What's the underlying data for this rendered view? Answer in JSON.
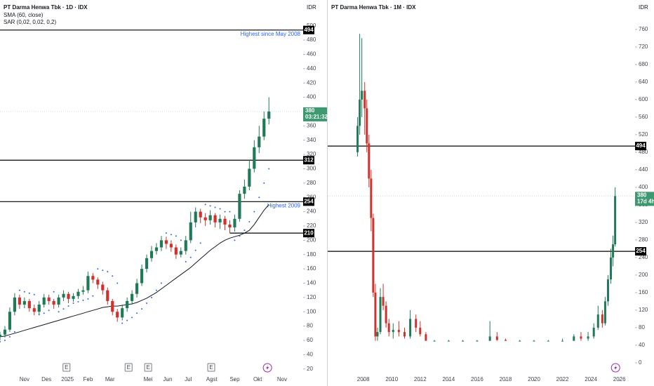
{
  "chart_data": [
    {
      "type": "candlestick",
      "title": "PT Darma Henwa Tbk · 1D · IDX",
      "currency": "IDR",
      "colors": {
        "up": "#1f7a57",
        "down": "#d0312d",
        "sma": "#131722",
        "sar": "#2962ff",
        "last": "#3d9970"
      },
      "open": [
        65,
        68,
        75,
        100,
        120,
        110,
        115,
        105,
        100,
        110,
        120,
        115,
        110,
        120,
        125,
        118,
        122,
        128,
        130,
        150,
        145,
        138,
        130,
        115,
        100,
        92,
        105,
        115,
        125,
        140,
        160,
        175,
        185,
        190,
        200,
        195,
        190,
        180,
        185,
        200,
        225,
        240,
        232,
        228,
        235,
        225,
        230,
        222,
        218,
        230,
        265,
        275,
        300,
        330,
        345,
        370
      ],
      "high": [
        72,
        80,
        106,
        126,
        124,
        120,
        118,
        110,
        115,
        125,
        124,
        118,
        124,
        130,
        128,
        126,
        132,
        136,
        156,
        154,
        148,
        142,
        134,
        118,
        104,
        110,
        120,
        130,
        146,
        166,
        180,
        192,
        196,
        206,
        205,
        200,
        194,
        190,
        206,
        240,
        246,
        244,
        238,
        242,
        238,
        236,
        234,
        228,
        236,
        270,
        285,
        312,
        340,
        360,
        380,
        400
      ],
      "low": [
        60,
        64,
        72,
        95,
        104,
        105,
        100,
        95,
        96,
        106,
        110,
        104,
        106,
        115,
        112,
        114,
        118,
        124,
        126,
        140,
        132,
        124,
        110,
        95,
        86,
        88,
        100,
        110,
        120,
        136,
        155,
        170,
        180,
        185,
        188,
        184,
        174,
        176,
        180,
        196,
        218,
        224,
        220,
        222,
        218,
        216,
        214,
        210,
        212,
        226,
        258,
        270,
        295,
        322,
        340,
        362
      ],
      "close": [
        68,
        75,
        100,
        120,
        110,
        115,
        105,
        100,
        110,
        120,
        115,
        110,
        120,
        125,
        118,
        122,
        128,
        130,
        150,
        145,
        138,
        130,
        115,
        100,
        92,
        105,
        115,
        125,
        140,
        160,
        175,
        185,
        190,
        200,
        195,
        190,
        180,
        185,
        200,
        225,
        240,
        232,
        228,
        235,
        225,
        230,
        222,
        218,
        230,
        265,
        275,
        300,
        330,
        345,
        370,
        380
      ],
      "sma": {
        "name": "SMA (60, close)",
        "values": [
          65,
          66,
          68,
          70,
          72,
          74,
          76,
          78,
          80,
          82,
          84,
          86,
          88,
          90,
          92,
          94,
          96,
          98,
          100,
          102,
          104,
          106,
          107,
          108,
          108,
          109,
          110,
          111,
          113,
          116,
          119,
          123,
          127,
          132,
          137,
          142,
          147,
          152,
          157,
          162,
          168,
          174,
          180,
          186,
          191,
          196,
          200,
          203,
          205,
          207,
          210,
          214,
          222,
          232,
          242,
          250
        ]
      },
      "sar": {
        "name": "SAR (0,02, 0,02, 0,2)",
        "values": [
          58,
          60,
          65,
          72,
          130,
          128,
          126,
          124,
          96,
          98,
          102,
          128,
          100,
          104,
          108,
          112,
          114,
          116,
          118,
          122,
          160,
          158,
          156,
          150,
          140,
          84,
          88,
          92,
          98,
          104,
          112,
          120,
          130,
          140,
          210,
          208,
          206,
          200,
          170,
          176,
          186,
          196,
          250,
          248,
          246,
          244,
          240,
          240,
          200,
          206,
          214,
          226,
          240,
          260,
          280,
          300
        ]
      },
      "xlim": [
        0,
        62
      ],
      "xticks": [
        {
          "value": 5,
          "label": "Nov"
        },
        {
          "value": 9.5,
          "label": "Des"
        },
        {
          "value": 13.8,
          "label": "2025"
        },
        {
          "value": 18,
          "label": "Feb"
        },
        {
          "value": 22.5,
          "label": "Mar"
        },
        {
          "value": 30.3,
          "label": "Mei"
        },
        {
          "value": 34.3,
          "label": "Jun"
        },
        {
          "value": 38.5,
          "label": "Jul"
        },
        {
          "value": 43.3,
          "label": "Agst"
        },
        {
          "value": 48,
          "label": "Sep"
        },
        {
          "value": 52.7,
          "label": "Okt"
        },
        {
          "value": 57.7,
          "label": "Nov"
        }
      ],
      "ylim": [
        6,
        536
      ],
      "yticks": [
        20,
        40,
        60,
        80,
        100,
        120,
        140,
        160,
        180,
        200,
        220,
        240,
        260,
        280,
        300,
        320,
        340,
        360,
        380,
        400,
        420,
        440,
        460,
        480,
        500
      ],
      "levels": [
        {
          "value": 494,
          "annotation": "Highest since May 2008"
        },
        {
          "value": 312
        },
        {
          "value": 254,
          "annotation": "Highest 2009"
        },
        {
          "value": 210,
          "x_start": 47
        }
      ],
      "last_price": 380,
      "countdown": "03:21:32",
      "events": [
        {
          "value": 13.6,
          "label": "E"
        },
        {
          "value": 26.3,
          "label": "E"
        },
        {
          "value": 30.3,
          "label": "E"
        },
        {
          "value": 43.2,
          "label": "E"
        }
      ],
      "dividends": [
        54.7
      ]
    },
    {
      "type": "candlestick",
      "title": "PT Darma Henwa Tbk · 1M · IDX",
      "currency": "IDR",
      "colors": {
        "up": "#1f7a57",
        "down": "#d0312d",
        "last": "#3d9970"
      },
      "x": [
        2007.6,
        2007.75,
        2007.9,
        2008.1,
        2008.25,
        2008.4,
        2008.55,
        2008.7,
        2008.85,
        2009.0,
        2009.2,
        2009.4,
        2009.6,
        2009.8,
        2010.1,
        2010.5,
        2010.9,
        2011.3,
        2011.7,
        2012.0,
        2012.4,
        2013,
        2014,
        2015,
        2016,
        2016.9,
        2017.4,
        2018,
        2019,
        2020,
        2021,
        2022,
        2022.8,
        2023.3,
        2023.8,
        2024.2,
        2024.5,
        2024.8,
        2025.0,
        2025.2,
        2025.4,
        2025.55,
        2025.7
      ],
      "open": [
        480,
        540,
        600,
        620,
        580,
        500,
        420,
        330,
        160,
        60,
        70,
        150,
        130,
        90,
        70,
        75,
        70,
        60,
        100,
        80,
        65,
        50,
        50,
        50,
        50,
        50,
        60,
        52,
        50,
        50,
        50,
        50,
        50,
        60,
        55,
        60,
        80,
        110,
        90,
        140,
        190,
        240,
        270
      ],
      "high": [
        560,
        750,
        740,
        640,
        600,
        520,
        440,
        340,
        180,
        80,
        170,
        180,
        140,
        100,
        90,
        95,
        80,
        120,
        110,
        95,
        70,
        52,
        52,
        52,
        52,
        95,
        70,
        55,
        52,
        52,
        52,
        55,
        65,
        70,
        70,
        90,
        130,
        120,
        150,
        200,
        260,
        290,
        400
      ],
      "low": [
        470,
        520,
        560,
        520,
        480,
        400,
        300,
        150,
        50,
        50,
        65,
        120,
        80,
        60,
        55,
        60,
        55,
        55,
        70,
        60,
        50,
        50,
        50,
        50,
        50,
        50,
        50,
        50,
        50,
        50,
        50,
        50,
        50,
        50,
        50,
        55,
        75,
        80,
        85,
        130,
        180,
        220,
        265
      ],
      "close": [
        540,
        600,
        620,
        580,
        500,
        420,
        330,
        160,
        60,
        70,
        150,
        130,
        90,
        70,
        75,
        70,
        60,
        100,
        80,
        65,
        50,
        50,
        50,
        50,
        50,
        60,
        52,
        50,
        50,
        50,
        50,
        50,
        60,
        55,
        60,
        80,
        110,
        90,
        140,
        190,
        240,
        270,
        380
      ],
      "xlim": [
        2005.5,
        2027.1
      ],
      "xticks": [
        2008,
        2010,
        2012,
        2014,
        2016,
        2018,
        2020,
        2022,
        2024,
        2026
      ],
      "ylim": [
        -37,
        827
      ],
      "yticks": [
        0,
        40,
        80,
        120,
        160,
        200,
        240,
        280,
        320,
        360,
        400,
        440,
        480,
        520,
        560,
        600,
        640,
        680,
        720,
        760
      ],
      "levels": [
        {
          "value": 494
        },
        {
          "value": 254
        }
      ],
      "last_price": 380,
      "countdown": "17d 4h",
      "dividends": [
        2025.73
      ]
    }
  ]
}
